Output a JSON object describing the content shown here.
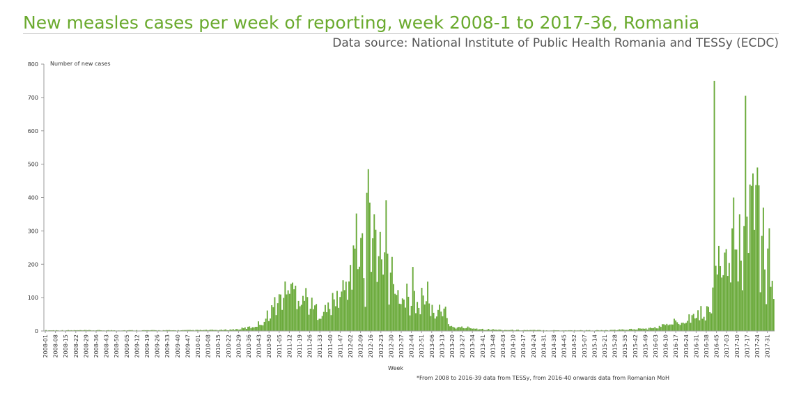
{
  "header": {
    "title": "New measles cases per week of reporting, week 2008-1 to 2017-36, Romania",
    "source": "Data source: National Institute of Public Health Romania and TESSy (ECDC)"
  },
  "footnote": "*From 2008 to 2016-39 data from TESSy, from 2016-40 onwards data from Romanian MoH",
  "colors": {
    "bar": "#6aaa3a",
    "title": "#6aaa2e",
    "axis": "#999999"
  },
  "chart_data": {
    "type": "bar",
    "title": "New measles cases per week of reporting, week 2008-1 to 2017-36, Romania",
    "xlabel": "Week",
    "ylabel": "Number of new cases",
    "ylim": [
      0,
      800
    ],
    "yticks": [
      0,
      100,
      200,
      300,
      400,
      500,
      600,
      700,
      800
    ],
    "grid": false,
    "legend": "none",
    "tick_labels": [
      "2008-01",
      "2008-08",
      "2008-15",
      "2008-22",
      "2008-29",
      "2008-36",
      "2008-43",
      "2008-50",
      "2009-05",
      "2009-12",
      "2009-19",
      "2009-26",
      "2009-33",
      "2009-40",
      "2009-47",
      "2010-01",
      "2010-08",
      "2010-15",
      "2010-22",
      "2010-29",
      "2010-36",
      "2010-43",
      "2010-50",
      "2011-05",
      "2011-12",
      "2011-19",
      "2011-26",
      "2011-33",
      "2011-40",
      "2011-47",
      "2012-02",
      "2012-09",
      "2012-16",
      "2012-23",
      "2012-30",
      "2012-37",
      "2012-44",
      "2012-51",
      "2013-06",
      "2013-13",
      "2013-20",
      "2013-27",
      "2013-34",
      "2013-41",
      "2013-48",
      "2014-03",
      "2014-10",
      "2014-17",
      "2014-24",
      "2014-31",
      "2014-38",
      "2014-45",
      "2014-52",
      "2015-07",
      "2015-14",
      "2015-21",
      "2015-28",
      "2015-35",
      "2015-42",
      "2015-49",
      "2016-03",
      "2016-10",
      "2016-17",
      "2016-24",
      "2016-31",
      "2016-38",
      "2016-45",
      "2017-03",
      "2017-10",
      "2017-17",
      "2017-24",
      "2017-31"
    ],
    "first_week": "2008-01",
    "last_week": "2017-36",
    "keyframes": [
      [
        0,
        2
      ],
      [
        30,
        2
      ],
      [
        60,
        2
      ],
      [
        90,
        2
      ],
      [
        120,
        3
      ],
      [
        130,
        5
      ],
      [
        140,
        12
      ],
      [
        148,
        30
      ],
      [
        152,
        60
      ],
      [
        156,
        80
      ],
      [
        160,
        100
      ],
      [
        164,
        115
      ],
      [
        168,
        120
      ],
      [
        172,
        110
      ],
      [
        176,
        100
      ],
      [
        180,
        70
      ],
      [
        184,
        60
      ],
      [
        188,
        55
      ],
      [
        192,
        70
      ],
      [
        196,
        90
      ],
      [
        200,
        110
      ],
      [
        204,
        140
      ],
      [
        206,
        200
      ],
      [
        208,
        180
      ],
      [
        210,
        350
      ],
      [
        212,
        150
      ],
      [
        214,
        290
      ],
      [
        216,
        130
      ],
      [
        218,
        485
      ],
      [
        220,
        200
      ],
      [
        222,
        350
      ],
      [
        224,
        150
      ],
      [
        226,
        300
      ],
      [
        228,
        130
      ],
      [
        230,
        390
      ],
      [
        232,
        100
      ],
      [
        234,
        220
      ],
      [
        236,
        90
      ],
      [
        238,
        110
      ],
      [
        240,
        70
      ],
      [
        244,
        120
      ],
      [
        246,
        60
      ],
      [
        248,
        190
      ],
      [
        250,
        70
      ],
      [
        254,
        90
      ],
      [
        256,
        60
      ],
      [
        258,
        145
      ],
      [
        260,
        50
      ],
      [
        264,
        70
      ],
      [
        268,
        40
      ],
      [
        270,
        80
      ],
      [
        272,
        20
      ],
      [
        276,
        10
      ],
      [
        286,
        10
      ],
      [
        296,
        5
      ],
      [
        310,
        3
      ],
      [
        340,
        2
      ],
      [
        360,
        2
      ],
      [
        380,
        2
      ],
      [
        410,
        8
      ],
      [
        420,
        20
      ],
      [
        430,
        35
      ],
      [
        440,
        50
      ],
      [
        448,
        60
      ],
      [
        450,
        110
      ],
      [
        451,
        750
      ],
      [
        452,
        160
      ],
      [
        454,
        250
      ],
      [
        456,
        130
      ],
      [
        458,
        230
      ],
      [
        460,
        140
      ],
      [
        462,
        150
      ],
      [
        464,
        400
      ],
      [
        466,
        180
      ],
      [
        468,
        350
      ],
      [
        470,
        150
      ],
      [
        472,
        700
      ],
      [
        474,
        230
      ],
      [
        476,
        430
      ],
      [
        478,
        390
      ],
      [
        480,
        490
      ],
      [
        482,
        200
      ],
      [
        484,
        370
      ],
      [
        486,
        110
      ],
      [
        488,
        310
      ],
      [
        490,
        120
      ],
      [
        491,
        130
      ]
    ],
    "peaks": [
      [
        451,
        750
      ],
      [
        472,
        705
      ],
      [
        480,
        490
      ],
      [
        218,
        485
      ],
      [
        476,
        435
      ],
      [
        464,
        400
      ],
      [
        230,
        392
      ],
      [
        484,
        370
      ],
      [
        210,
        352
      ],
      [
        222,
        350
      ],
      [
        468,
        350
      ],
      [
        488,
        308
      ],
      [
        226,
        297
      ],
      [
        214,
        293
      ],
      [
        454,
        255
      ],
      [
        458,
        235
      ],
      [
        234,
        222
      ],
      [
        206,
        198
      ],
      [
        248,
        192
      ],
      [
        258,
        148
      ],
      [
        244,
        142
      ],
      [
        164,
        122
      ],
      [
        168,
        125
      ]
    ]
  }
}
